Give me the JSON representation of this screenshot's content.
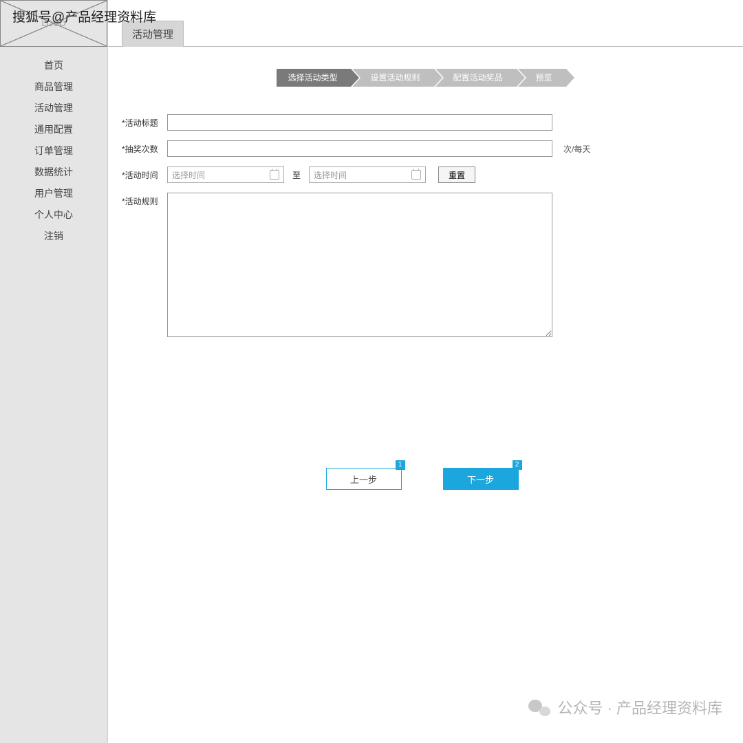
{
  "watermark_top": "搜狐号@产品经理资料库",
  "watermark_bottom": "公众号 · 产品经理资料库",
  "logo_placeholder": "LOGO",
  "sidebar": {
    "items": [
      {
        "label": "首页"
      },
      {
        "label": "商品管理"
      },
      {
        "label": "活动管理"
      },
      {
        "label": "通用配置"
      },
      {
        "label": "订单管理"
      },
      {
        "label": "数据统计"
      },
      {
        "label": "用户管理"
      },
      {
        "label": "个人中心"
      },
      {
        "label": "注销"
      }
    ]
  },
  "tabs": {
    "active": "活动管理"
  },
  "steps": [
    {
      "label": "选择活动类型",
      "state": "active"
    },
    {
      "label": "设置活动规则",
      "state": "inactive"
    },
    {
      "label": "配置活动奖品",
      "state": "inactive"
    },
    {
      "label": "预览",
      "state": "inactive"
    }
  ],
  "form": {
    "title_label": "*活动标题",
    "title_value": "",
    "count_label": "*抽奖次数",
    "count_value": "",
    "count_unit": "次/每天",
    "time_label": "*活动时间",
    "time_placeholder": "选择时间",
    "time_separator": "至",
    "reset_label": "重置",
    "rule_label": "*活动规则",
    "rule_value": ""
  },
  "actions": {
    "prev": "上一步",
    "next": "下一步",
    "prev_badge": "1",
    "next_badge": "2"
  },
  "colors": {
    "sidebar_bg": "#e5e5e5",
    "step_active": "#7a7a7a",
    "step_inactive": "#bfbfbf",
    "primary": "#1ba7dd",
    "border": "#999999",
    "text": "#333333"
  }
}
